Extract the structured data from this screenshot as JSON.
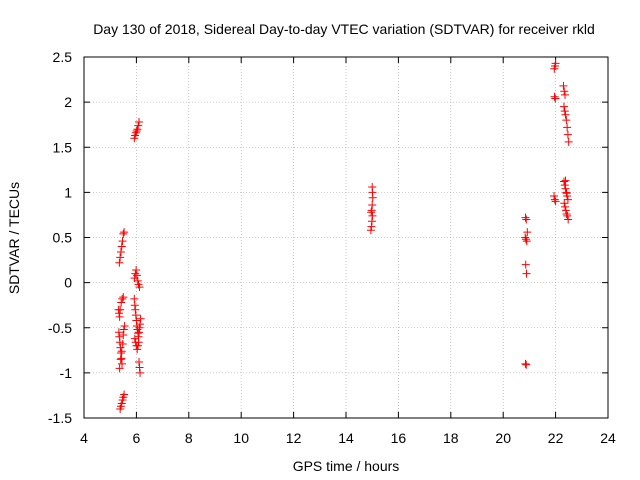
{
  "chart_data": {
    "type": "scatter",
    "title": "Day 130 of 2018, Sidereal Day-to-day VTEC variation (SDTVAR) for receiver rkld",
    "xlabel": "GPS time / hours",
    "ylabel": "SDTVAR / TECUs",
    "xlim": [
      4,
      24
    ],
    "ylim": [
      -1.5,
      2.5
    ],
    "xticks": [
      4,
      6,
      8,
      10,
      12,
      14,
      16,
      18,
      20,
      22,
      24
    ],
    "xtick_labels": [
      "4",
      "6",
      "8",
      "10",
      "12",
      "14",
      "16",
      "18",
      "20",
      "22",
      "24"
    ],
    "yticks": [
      -1.5,
      -1,
      -0.5,
      0,
      0.5,
      1,
      1.5,
      2,
      2.5
    ],
    "ytick_labels": [
      "-1.5",
      "-1",
      "-0.5",
      "0",
      "0.5",
      "1",
      "1.5",
      "2",
      "2.5"
    ],
    "grid": true,
    "marker": "plus",
    "color": "#ff0000",
    "series": [
      {
        "name": "SDTVAR",
        "points": [
          [
            5.35,
            0.22
          ],
          [
            5.38,
            0.28
          ],
          [
            5.41,
            0.34
          ],
          [
            5.44,
            0.4
          ],
          [
            5.47,
            0.46
          ],
          [
            5.5,
            0.54
          ],
          [
            5.53,
            0.56
          ],
          [
            5.32,
            -0.3
          ],
          [
            5.34,
            -0.34
          ],
          [
            5.36,
            -0.38
          ],
          [
            5.38,
            -0.3
          ],
          [
            5.42,
            -0.22
          ],
          [
            5.46,
            -0.18
          ],
          [
            5.5,
            -0.16
          ],
          [
            5.33,
            -0.55
          ],
          [
            5.35,
            -0.6
          ],
          [
            5.37,
            -0.66
          ],
          [
            5.39,
            -0.72
          ],
          [
            5.41,
            -0.78
          ],
          [
            5.43,
            -0.84
          ],
          [
            5.45,
            -0.9
          ],
          [
            5.36,
            -0.95
          ],
          [
            5.4,
            -0.85
          ],
          [
            5.44,
            -0.76
          ],
          [
            5.48,
            -0.68
          ],
          [
            5.5,
            -0.58
          ],
          [
            5.52,
            -0.52
          ],
          [
            5.55,
            -0.48
          ],
          [
            5.38,
            -1.4
          ],
          [
            5.41,
            -1.37
          ],
          [
            5.44,
            -1.34
          ],
          [
            5.47,
            -1.3
          ],
          [
            5.5,
            -1.27
          ],
          [
            5.53,
            -1.24
          ],
          [
            5.92,
            1.6
          ],
          [
            5.95,
            1.63
          ],
          [
            5.98,
            1.66
          ],
          [
            6.01,
            1.68
          ],
          [
            6.04,
            1.7
          ],
          [
            6.07,
            1.74
          ],
          [
            6.1,
            1.78
          ],
          [
            5.93,
            0.05
          ],
          [
            5.96,
            0.1
          ],
          [
            5.99,
            0.14
          ],
          [
            6.02,
            0.08
          ],
          [
            6.05,
            0.02
          ],
          [
            6.08,
            -0.02
          ],
          [
            6.12,
            -0.05
          ],
          [
            5.92,
            -0.18
          ],
          [
            5.94,
            -0.25
          ],
          [
            5.96,
            -0.3
          ],
          [
            5.98,
            -0.36
          ],
          [
            6.0,
            -0.42
          ],
          [
            6.02,
            -0.48
          ],
          [
            6.04,
            -0.52
          ],
          [
            6.06,
            -0.56
          ],
          [
            6.08,
            -0.6
          ],
          [
            6.1,
            -0.55
          ],
          [
            6.12,
            -0.5
          ],
          [
            6.14,
            -0.46
          ],
          [
            6.16,
            -0.4
          ],
          [
            5.94,
            -0.62
          ],
          [
            5.97,
            -0.66
          ],
          [
            6.0,
            -0.7
          ],
          [
            6.03,
            -0.74
          ],
          [
            6.06,
            -0.7
          ],
          [
            6.09,
            -0.66
          ],
          [
            6.1,
            -0.88
          ],
          [
            6.12,
            -0.94
          ],
          [
            6.14,
            -1.0
          ],
          [
            14.95,
            0.58
          ],
          [
            14.97,
            0.62
          ],
          [
            14.99,
            0.68
          ],
          [
            15.01,
            0.74
          ],
          [
            14.96,
            0.78
          ],
          [
            14.98,
            0.8
          ],
          [
            15.0,
            0.86
          ],
          [
            15.02,
            0.94
          ],
          [
            15.01,
            1.0
          ],
          [
            15.0,
            1.06
          ],
          [
            20.85,
            0.72
          ],
          [
            20.88,
            0.7
          ],
          [
            20.84,
            0.5
          ],
          [
            20.87,
            0.48
          ],
          [
            20.9,
            0.46
          ],
          [
            20.92,
            0.56
          ],
          [
            20.86,
            0.2
          ],
          [
            20.89,
            0.1
          ],
          [
            20.85,
            -0.9
          ],
          [
            20.88,
            -0.91
          ],
          [
            21.95,
            2.37
          ],
          [
            21.98,
            2.4
          ],
          [
            22.0,
            2.43
          ],
          [
            21.96,
            2.06
          ],
          [
            21.99,
            2.04
          ],
          [
            21.94,
            0.96
          ],
          [
            21.97,
            0.92
          ],
          [
            22.0,
            0.9
          ],
          [
            22.3,
            2.18
          ],
          [
            22.33,
            2.12
          ],
          [
            22.36,
            2.08
          ],
          [
            22.32,
            1.95
          ],
          [
            22.35,
            1.9
          ],
          [
            22.38,
            1.86
          ],
          [
            22.41,
            1.8
          ],
          [
            22.44,
            1.72
          ],
          [
            22.47,
            1.64
          ],
          [
            22.5,
            1.56
          ],
          [
            22.32,
            1.12
          ],
          [
            22.35,
            1.08
          ],
          [
            22.38,
            1.04
          ],
          [
            22.41,
            1.0
          ],
          [
            22.44,
            0.96
          ],
          [
            22.47,
            0.92
          ],
          [
            22.33,
            0.88
          ],
          [
            22.36,
            0.84
          ],
          [
            22.39,
            0.8
          ],
          [
            22.42,
            0.76
          ],
          [
            22.45,
            0.74
          ],
          [
            22.48,
            0.7
          ],
          [
            22.38,
            1.13
          ],
          [
            22.42,
            0.99
          ]
        ]
      }
    ]
  }
}
